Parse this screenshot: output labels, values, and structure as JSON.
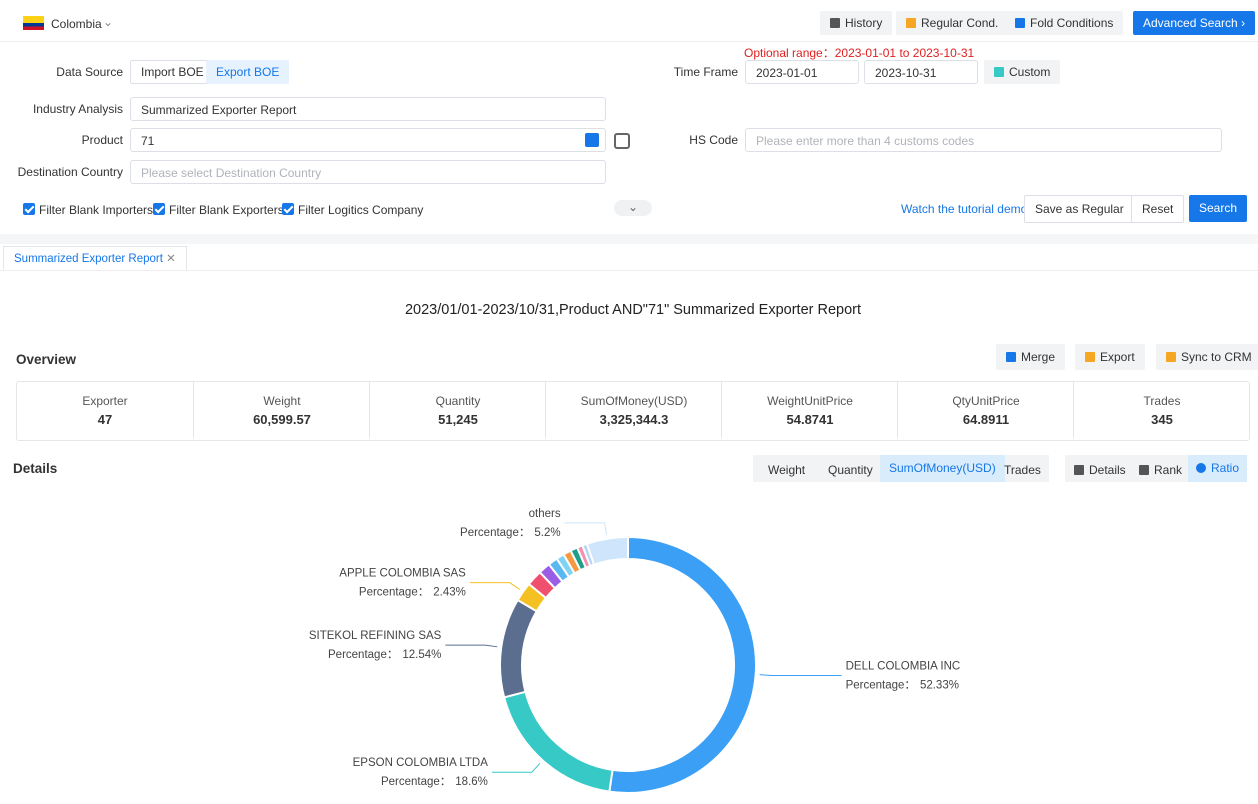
{
  "header": {
    "country": "Colombia",
    "buttons": [
      "History",
      "Regular Cond.",
      "Fold Conditions",
      "Advanced Search"
    ]
  },
  "form": {
    "optional_range": "Optional range：2023-01-01 to 2023-10-31",
    "data_source_label": "Data Source",
    "data_source_options": [
      "Import BOE",
      "Export BOE"
    ],
    "time_frame_label": "Time Frame",
    "start_date": "2023-01-01",
    "end_date": "2023-10-31",
    "custom": "Custom",
    "industry_label": "Industry Analysis",
    "industry_value": "Summarized Exporter Report",
    "product_label": "Product",
    "product_value": "71",
    "hs_label": "HS Code",
    "hs_placeholder": "Please enter more than 4 customs codes",
    "destination_label": "Destination Country",
    "destination_placeholder": "Please select Destination Country",
    "filters": [
      "Filter Blank Importers",
      "Filter Blank Exporters",
      "Filter Logitics Company"
    ],
    "tutorial": "Watch the tutorial demo",
    "save": "Save as Regular",
    "reset": "Reset",
    "search": "Search"
  },
  "tab": "Summarized Exporter Report",
  "report_title": "2023/01/01-2023/10/31,Product AND\"71\" Summarized Exporter Report",
  "overview": {
    "title": "Overview",
    "buttons": [
      "Merge",
      "Export",
      "Sync to CRM"
    ],
    "stats": [
      {
        "label": "Exporter",
        "value": "47"
      },
      {
        "label": "Weight",
        "value": "60,599.57"
      },
      {
        "label": "Quantity",
        "value": "51,245"
      },
      {
        "label": "SumOfMoney(USD)",
        "value": "3,325,344.3"
      },
      {
        "label": "WeightUnitPrice",
        "value": "54.8741"
      },
      {
        "label": "QtyUnitPrice",
        "value": "64.8911"
      },
      {
        "label": "Trades",
        "value": "345"
      }
    ]
  },
  "details": {
    "title": "Details",
    "metrics": [
      "Weight",
      "Quantity",
      "SumOfMoney(USD)",
      "Trades"
    ],
    "views": [
      "Details",
      "Rank",
      "Ratio"
    ]
  },
  "chart_data": {
    "type": "pie",
    "percentage_label": "Percentage：",
    "categories": [
      "DELL COLOMBIA INC",
      "EPSON COLOMBIA LTDA",
      "SITEKOL REFINING SAS",
      "APPLE COLOMBIA SAS",
      null,
      null,
      null,
      null,
      null,
      null,
      null,
      null,
      "others"
    ],
    "values": [
      52.33,
      18.6,
      12.54,
      2.43,
      2.0,
      1.5,
      1.2,
      1.0,
      1.0,
      0.9,
      0.7,
      0.6,
      5.2
    ],
    "value_labels": [
      "52.33%",
      "18.6%",
      "12.54%",
      "2.43%",
      null,
      null,
      null,
      null,
      null,
      null,
      null,
      null,
      "5.2%"
    ],
    "colors": [
      "#3a9ff5",
      "#36c9c6",
      "#5b6e8f",
      "#f5c022",
      "#f0506e",
      "#9b5de5",
      "#5ab8f0",
      "#7fd3f7",
      "#f59a42",
      "#1f9e89",
      "#f58fb0",
      "#b3d4f5",
      "#cfe5fb"
    ]
  }
}
